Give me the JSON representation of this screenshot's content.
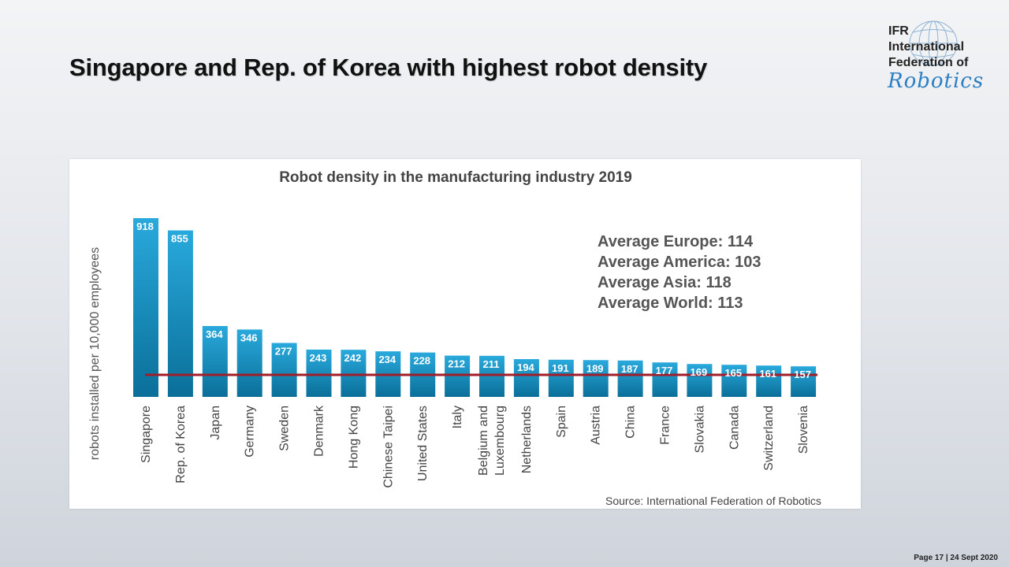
{
  "slide": {
    "title": "Singapore and Rep. of Korea with highest robot density",
    "footer": "Page 17 | 24 Sept 2020"
  },
  "logo": {
    "line1": "IFR",
    "line2": "International",
    "line3": "Federation of",
    "script": "Robotics"
  },
  "colors": {
    "bar_top": "#29a9dc",
    "bar_bottom": "#0a6f99",
    "average_line": "#a01e2a",
    "title": "#111111",
    "logo_blue": "#2b7fc2"
  },
  "chart_data": {
    "type": "bar",
    "title": "Robot density in the manufacturing industry 2019",
    "ylabel": "robots installed per 10,000 employees",
    "xlabel": "",
    "categories": [
      "Singapore",
      "Rep. of Korea",
      "Japan",
      "Germany",
      "Sweden",
      "Denmark",
      "Hong Kong",
      "Chinese Taipei",
      "United States",
      "Italy",
      "Belgium and Luxembourg",
      "Netherlands",
      "Spain",
      "Austria",
      "China",
      "France",
      "Slovakia",
      "Canada",
      "Switzerland",
      "Slovenia"
    ],
    "values": [
      918,
      855,
      364,
      346,
      277,
      243,
      242,
      234,
      228,
      212,
      211,
      194,
      191,
      189,
      187,
      177,
      169,
      165,
      161,
      157
    ],
    "reference_line": 113,
    "ylim": [
      0,
      918
    ],
    "grid": false,
    "legend": "none",
    "annotations": [
      "Average Europe: 114",
      "Average America: 103",
      "Average Asia: 118",
      "Average World: 113"
    ],
    "source": "Source: International Federation of Robotics"
  }
}
